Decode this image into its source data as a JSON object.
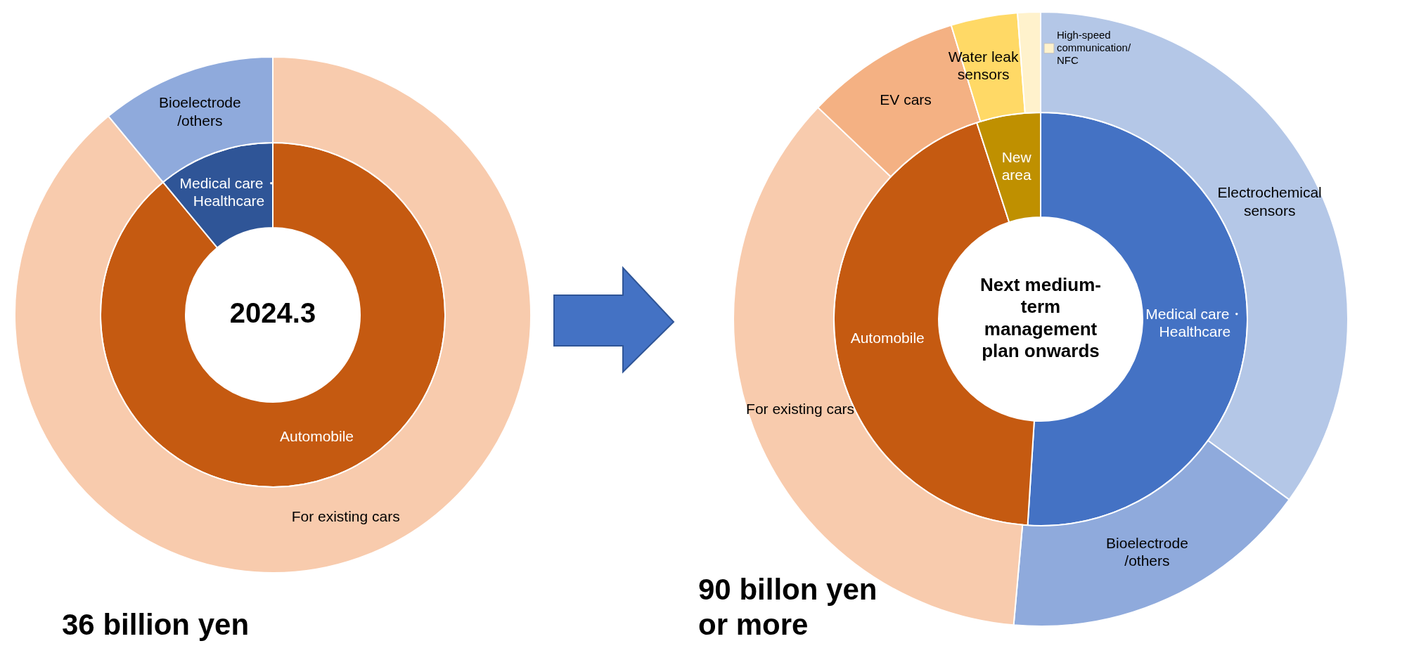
{
  "chart_data": [
    {
      "type": "donut",
      "title": "2024.3",
      "categories": [
        "Automobile",
        "Medical care・\nHealthcare"
      ],
      "values": [
        89,
        11
      ],
      "colors": [
        "#c55a11",
        "#2f5597"
      ]
    },
    {
      "type": "donut",
      "categories": [
        "For existing cars",
        "Bioelectrode\n/others"
      ],
      "values": [
        89,
        11
      ],
      "colors": [
        "#f8cbad",
        "#8faadc"
      ],
      "annotations": [
        "36 billion yen"
      ]
    },
    {
      "type": "donut",
      "title": "Next medium-\nterm\nmanagement\nplan onwards",
      "categories": [
        "Medical care・\nHealthcare",
        "Automobile",
        "New\narea"
      ],
      "values": [
        51,
        44,
        5
      ],
      "colors": [
        "#4472c4",
        "#c55a11",
        "#bf9000"
      ]
    },
    {
      "type": "donut",
      "categories": [
        "Electrochemical\nsensors",
        "Bioelectrode\n/others",
        "For existing cars",
        "EV cars",
        "Water leak\nsensors",
        "High-speed\ncommunication/\nNFC"
      ],
      "values": [
        35,
        16.4,
        35.7,
        8.2,
        3.5,
        1.2
      ],
      "colors": [
        "#b4c7e7",
        "#8faadc",
        "#f8cbad",
        "#f4b183",
        "#ffd966",
        "#fff2cc"
      ],
      "annotations": [
        "90 billon yen\nor more"
      ]
    }
  ]
}
